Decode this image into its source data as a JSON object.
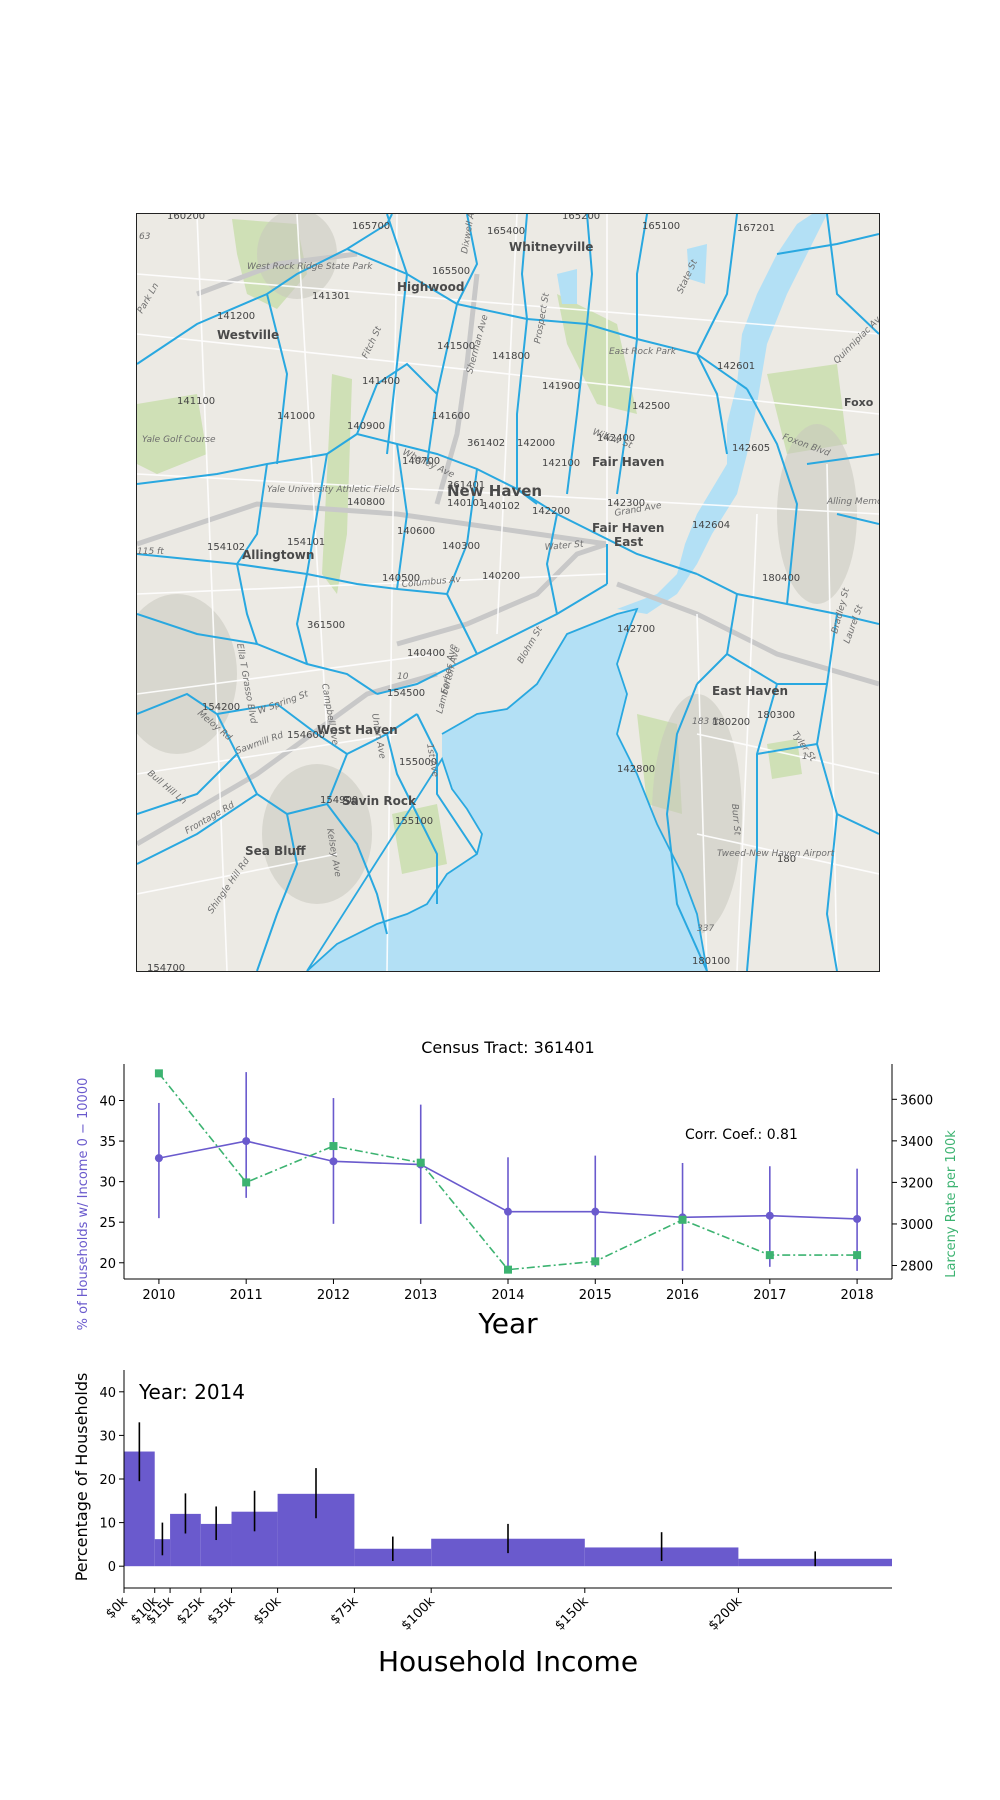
{
  "map": {
    "tract_labels": [
      {
        "text": "160200"
      },
      {
        "text": "165700"
      },
      {
        "text": "165400"
      },
      {
        "text": "165200"
      },
      {
        "text": "165100"
      },
      {
        "text": "167201"
      },
      {
        "text": "165500"
      },
      {
        "text": "141301"
      },
      {
        "text": "141200"
      },
      {
        "text": "141500"
      },
      {
        "text": "141800"
      },
      {
        "text": "142601"
      },
      {
        "text": "141400"
      },
      {
        "text": "141900"
      },
      {
        "text": "142500"
      },
      {
        "text": "141100"
      },
      {
        "text": "141000"
      },
      {
        "text": "140900"
      },
      {
        "text": "141600"
      },
      {
        "text": "361402"
      },
      {
        "text": "142000"
      },
      {
        "text": "142400"
      },
      {
        "text": "142605"
      },
      {
        "text": "140700"
      },
      {
        "text": "142100"
      },
      {
        "text": "361401"
      },
      {
        "text": "140101"
      },
      {
        "text": "140102"
      },
      {
        "text": "142200"
      },
      {
        "text": "142300"
      },
      {
        "text": "140800"
      },
      {
        "text": "142604"
      },
      {
        "text": "140600"
      },
      {
        "text": "154101"
      },
      {
        "text": "154102"
      },
      {
        "text": "140300"
      },
      {
        "text": "140200"
      },
      {
        "text": "180400"
      },
      {
        "text": "140500"
      },
      {
        "text": "142700"
      },
      {
        "text": "361500"
      },
      {
        "text": "140400"
      },
      {
        "text": "154500"
      },
      {
        "text": "154200"
      },
      {
        "text": "154600"
      },
      {
        "text": "180200"
      },
      {
        "text": "180300"
      },
      {
        "text": "155000"
      },
      {
        "text": "142800"
      },
      {
        "text": "154900"
      },
      {
        "text": "155100"
      },
      {
        "text": "180"
      },
      {
        "text": "180100"
      },
      {
        "text": "154700"
      }
    ],
    "place_labels": [
      {
        "text": "Whitneyville"
      },
      {
        "text": "Highwood"
      },
      {
        "text": "Westville"
      },
      {
        "text": "New Haven"
      },
      {
        "text": "Fair Haven"
      },
      {
        "text": "Fair Haven East"
      },
      {
        "text": "Allingtown"
      },
      {
        "text": "West Haven"
      },
      {
        "text": "East Haven"
      },
      {
        "text": "Savin Rock"
      },
      {
        "text": "Sea Bluff"
      },
      {
        "text": "Foxo"
      }
    ],
    "minor_labels": [
      {
        "text": "West Rock Ridge State Park"
      },
      {
        "text": "East Rock Park"
      },
      {
        "text": "Yale Golf Course"
      },
      {
        "text": "Yale University Athletic Fields"
      },
      {
        "text": "Alling Memorial Go Club"
      },
      {
        "text": "Tweed-New Haven Airport"
      },
      {
        "text": "Columbus Av"
      },
      {
        "text": "Whalley Ave"
      },
      {
        "text": "Willow St"
      },
      {
        "text": "Grand Ave"
      },
      {
        "text": "Water St"
      },
      {
        "text": "W Spring St"
      },
      {
        "text": "Meloy Rd"
      },
      {
        "text": "Sawmill Rd"
      },
      {
        "text": "Bull Hill Ln"
      },
      {
        "text": "Frontage Rd"
      },
      {
        "text": "Shingle Hill Rd"
      },
      {
        "text": "Kelsey Ave"
      },
      {
        "text": "Union Ave"
      },
      {
        "text": "Tyler St"
      },
      {
        "text": "Burr St"
      },
      {
        "text": "Foxon Blvd"
      },
      {
        "text": "Quinnipiac Ave"
      },
      {
        "text": "State St"
      },
      {
        "text": "Prospect St"
      },
      {
        "text": "Sherman Ave"
      },
      {
        "text": "Dixwell Ave"
      },
      {
        "text": "Fitch St"
      },
      {
        "text": "Park Ln"
      },
      {
        "text": "Campbell Ave"
      },
      {
        "text": "Forbes Ave"
      },
      {
        "text": "Bradley St"
      },
      {
        "text": "Laurel St"
      },
      {
        "text": "Ella T Grasso Blvd"
      },
      {
        "text": "183 ft"
      },
      {
        "text": "115 ft"
      },
      {
        "text": "10"
      },
      {
        "text": "1"
      },
      {
        "text": "337"
      },
      {
        "text": "63"
      },
      {
        "text": "Lamberton Ave"
      },
      {
        "text": "1st Ave"
      },
      {
        "text": "Blohm St"
      }
    ]
  },
  "chart_data": [
    {
      "type": "line",
      "title": "Census Tract: 361401",
      "xlabel": "Year",
      "ylabel_left": "% of Households w/ Income 0 − 10000",
      "ylabel_right": "Larceny Rate per 100k",
      "x": [
        2010,
        2011,
        2012,
        2013,
        2014,
        2015,
        2016,
        2017,
        2018
      ],
      "series": [
        {
          "name": "% of Households w/ Income 0 − 10000",
          "axis": "left",
          "color": "#6a5acd",
          "marker": "circle",
          "values": [
            32.9,
            35.0,
            32.5,
            32.1,
            26.3,
            26.3,
            25.6,
            25.8,
            25.4
          ],
          "err_low": [
            25.5,
            28.0,
            24.8,
            24.8,
            19.5,
            19.5,
            19.0,
            19.5,
            19.0
          ],
          "err_high": [
            39.7,
            43.5,
            40.3,
            39.5,
            33.0,
            33.2,
            32.3,
            31.9,
            31.6
          ]
        },
        {
          "name": "Larceny Rate per 100k",
          "axis": "right",
          "color": "#3cb371",
          "marker": "square",
          "values": [
            3725,
            3200,
            3375,
            3295,
            2780,
            2820,
            3020,
            2850,
            2850
          ]
        }
      ],
      "xlim": [
        2009.6,
        2018.4
      ],
      "ylim_left": [
        18,
        44.5
      ],
      "yticks_left": [
        20,
        25,
        30,
        35,
        40
      ],
      "ylim_right": [
        2735,
        3770
      ],
      "yticks_right": [
        2800,
        3000,
        3200,
        3400,
        3600
      ],
      "annotation": "Corr. Coef.: 0.81"
    },
    {
      "type": "bar",
      "title": "Year: 2014",
      "xlabel": "Household Income",
      "ylabel": "Percentage of Households",
      "bins": [
        {
          "lo": 0,
          "hi": 10000,
          "value": 26.3,
          "err_low": 19.5,
          "err_high": 33.0
        },
        {
          "lo": 10000,
          "hi": 15000,
          "value": 6.2,
          "err_low": 2.5,
          "err_high": 10.0
        },
        {
          "lo": 15000,
          "hi": 25000,
          "value": 12.0,
          "err_low": 7.5,
          "err_high": 16.7
        },
        {
          "lo": 25000,
          "hi": 35000,
          "value": 9.7,
          "err_low": 6.0,
          "err_high": 13.7
        },
        {
          "lo": 35000,
          "hi": 50000,
          "value": 12.5,
          "err_low": 8.0,
          "err_high": 17.3
        },
        {
          "lo": 50000,
          "hi": 75000,
          "value": 16.6,
          "err_low": 11.0,
          "err_high": 22.5
        },
        {
          "lo": 75000,
          "hi": 100000,
          "value": 4.0,
          "err_low": 1.2,
          "err_high": 6.8
        },
        {
          "lo": 100000,
          "hi": 150000,
          "value": 6.3,
          "err_low": 3.0,
          "err_high": 9.7
        },
        {
          "lo": 150000,
          "hi": 200000,
          "value": 4.3,
          "err_low": 1.2,
          "err_high": 7.8
        },
        {
          "lo": 200000,
          "hi": 250000,
          "value": 1.7,
          "err_low": 0.0,
          "err_high": 3.4
        }
      ],
      "color": "#6a5acd",
      "xticks": [
        {
          "value": 0,
          "label": "$0k"
        },
        {
          "value": 10000,
          "label": "$10k"
        },
        {
          "value": 15000,
          "label": "$15k"
        },
        {
          "value": 25000,
          "label": "$25k"
        },
        {
          "value": 35000,
          "label": "$35k"
        },
        {
          "value": 50000,
          "label": "$50k"
        },
        {
          "value": 75000,
          "label": "$75k"
        },
        {
          "value": 100000,
          "label": "$100k"
        },
        {
          "value": 150000,
          "label": "$150k"
        },
        {
          "value": 200000,
          "label": "$200k"
        }
      ],
      "xlim": [
        0,
        250000
      ],
      "ylim": [
        -5,
        45
      ],
      "yticks": [
        0,
        10,
        20,
        30,
        40
      ]
    }
  ]
}
